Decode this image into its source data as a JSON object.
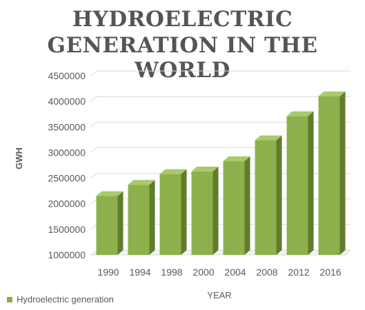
{
  "chart_data": {
    "type": "bar",
    "title_lines": [
      "HYDROELECTRIC",
      "GENERATION IN THE WORLD"
    ],
    "xlabel": "YEAR",
    "ylabel": "GWH",
    "categories": [
      "1990",
      "1994",
      "1998",
      "2000",
      "2004",
      "2008",
      "2012",
      "2016"
    ],
    "series": [
      {
        "name": "Hydroelectric generation",
        "values": [
          2150000,
          2370000,
          2580000,
          2630000,
          2830000,
          3240000,
          3710000,
          4100000
        ]
      }
    ],
    "ylim": [
      1000000,
      4500000
    ],
    "yticks": [
      "1000000",
      "1500000",
      "2000000",
      "2500000",
      "3000000",
      "3500000",
      "4000000",
      "4500000"
    ],
    "ytick_values": [
      1000000,
      1500000,
      2000000,
      2500000,
      3000000,
      3500000,
      4000000,
      4500000
    ],
    "grid": true,
    "legend_position": "bottom-left",
    "colors": {
      "bar_front": "#8db04c",
      "bar_side": "#5f7d2b",
      "bar_top": "#a9c96d",
      "grid": "#d9d9d9",
      "text": "#595959"
    }
  }
}
